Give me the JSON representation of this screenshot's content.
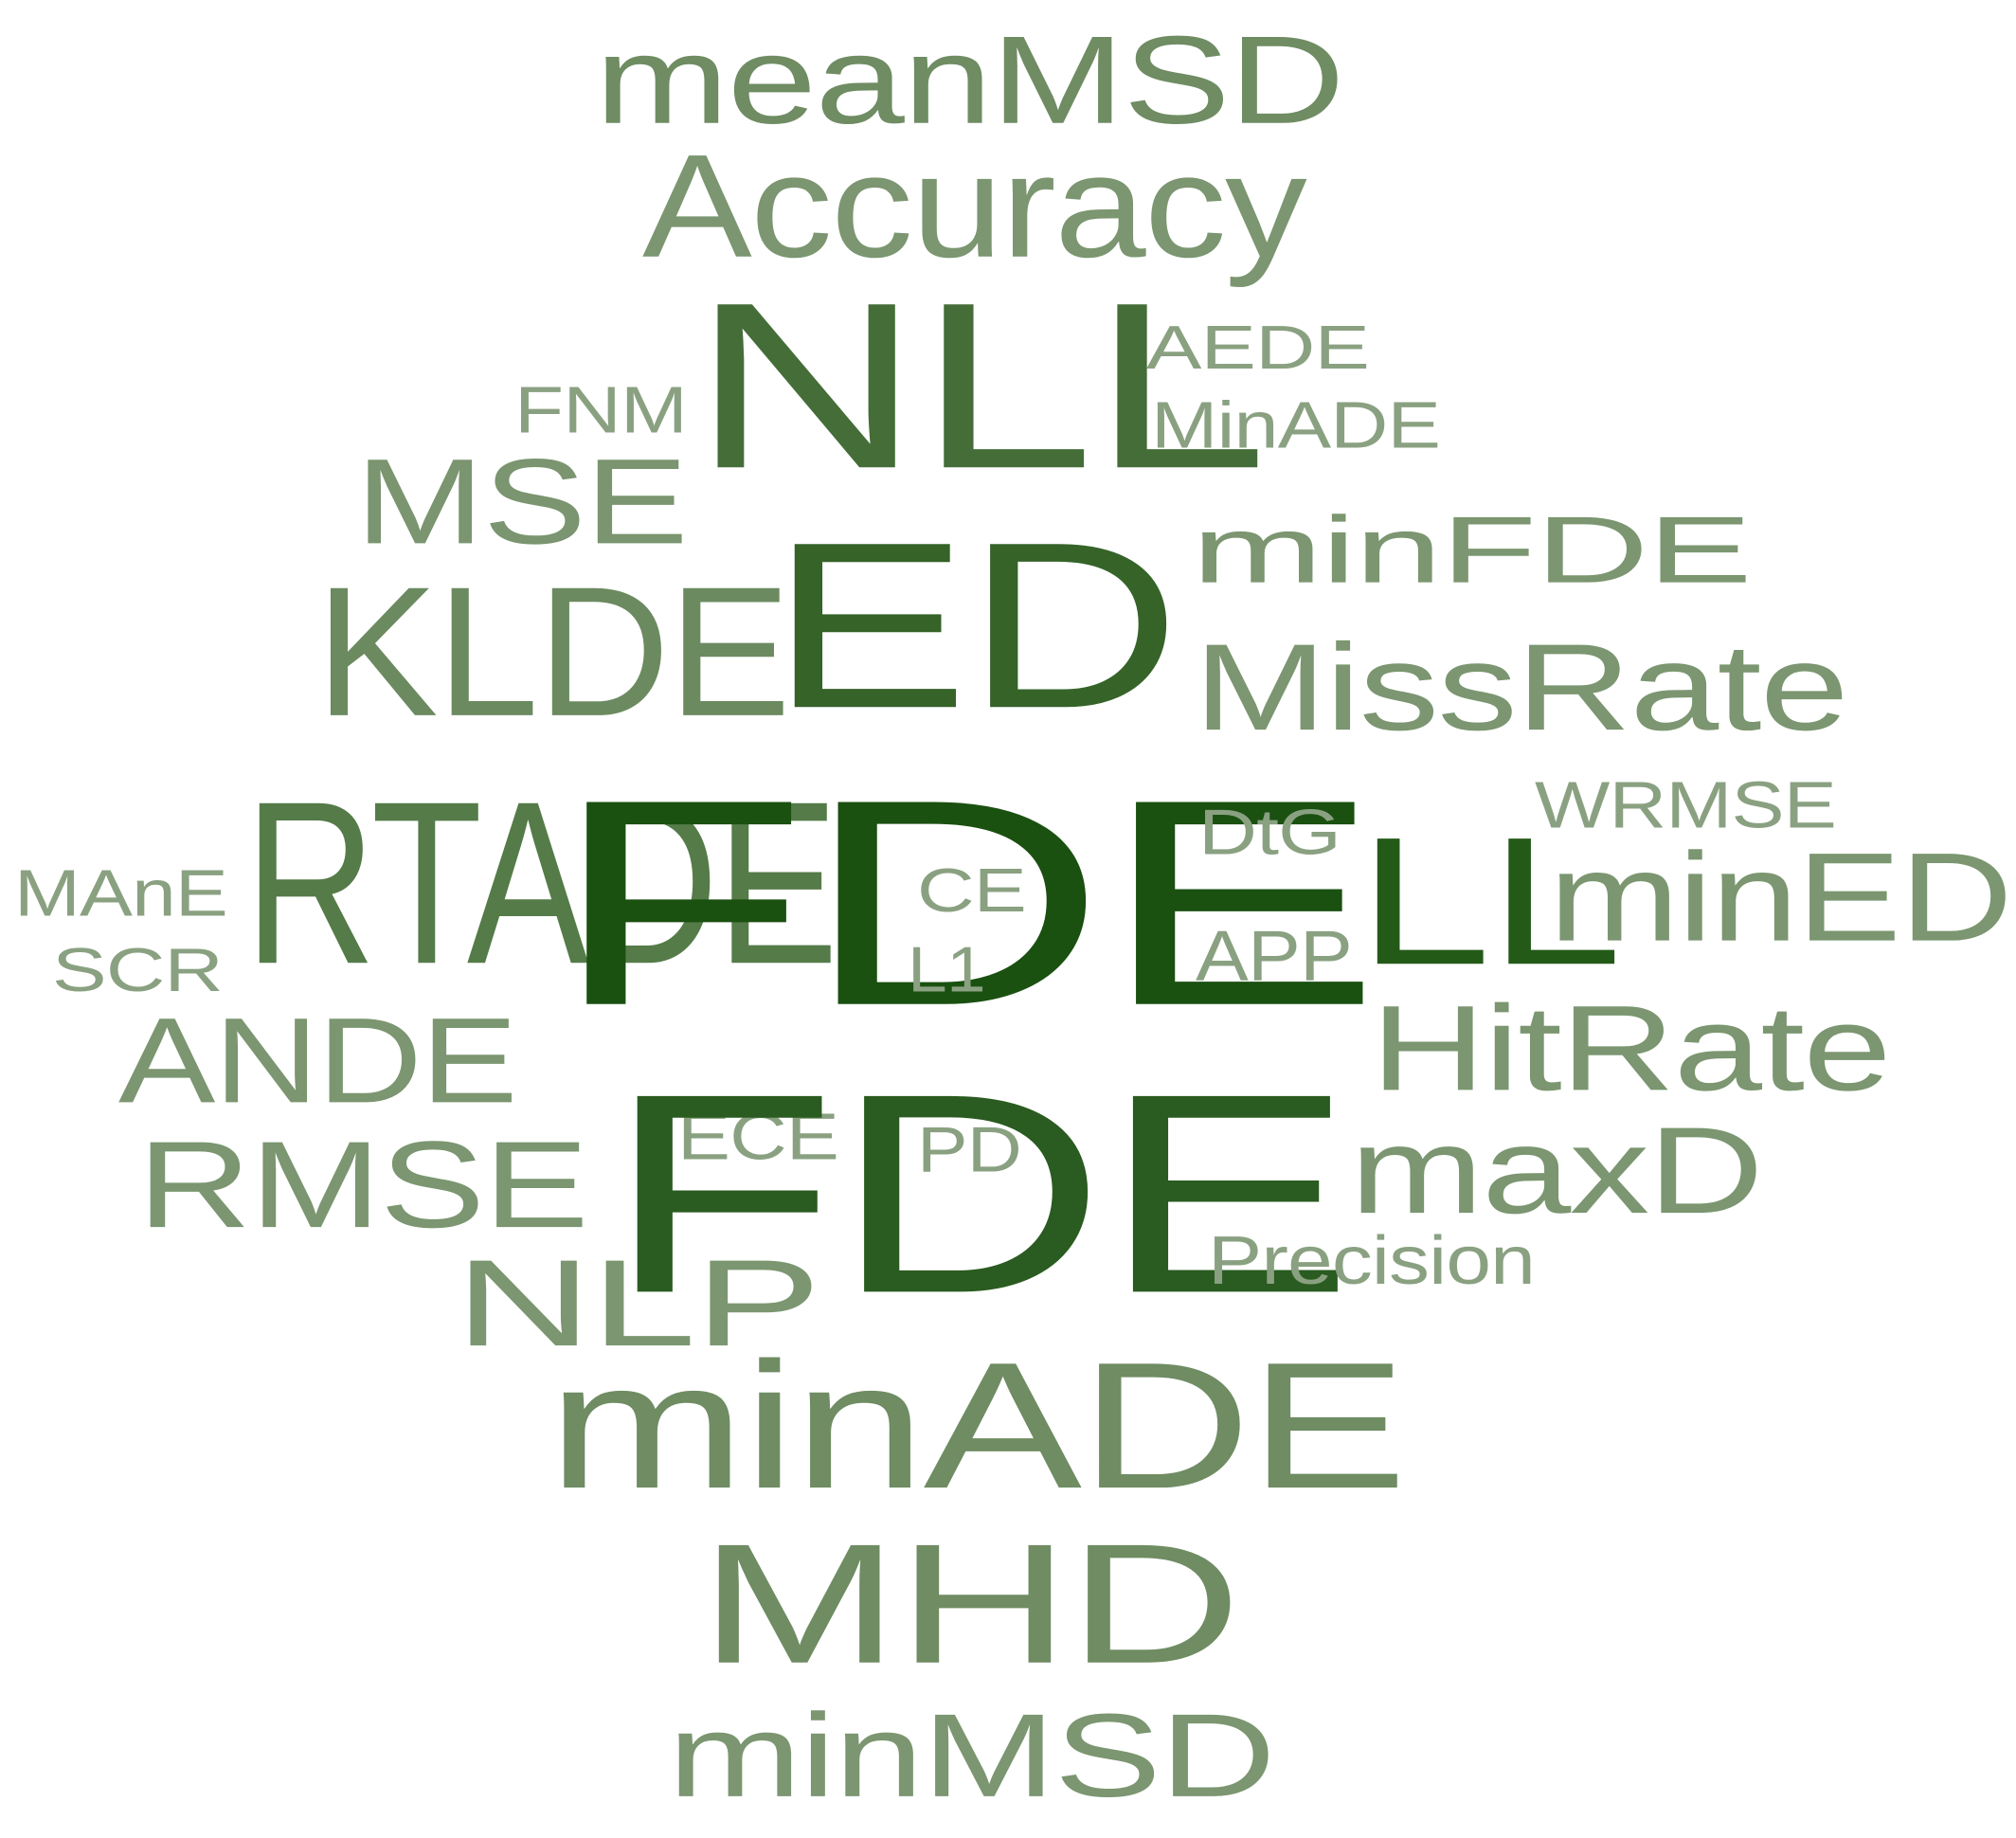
{
  "words": [
    {
      "text": "meanMSD",
      "color": "#6f8c63"
    },
    {
      "text": "Accuracy",
      "color": "#7b9670"
    },
    {
      "text": "NLL",
      "color": "#456d38"
    },
    {
      "text": "AEDE",
      "color": "#8aa181"
    },
    {
      "text": "MinADE",
      "color": "#8aa181"
    },
    {
      "text": "FNM",
      "color": "#8aa181"
    },
    {
      "text": "MSE",
      "color": "#7a956f"
    },
    {
      "text": "minFDE",
      "color": "#7b9670"
    },
    {
      "text": "KLDE",
      "color": "#6c8a60"
    },
    {
      "text": "ED",
      "color": "#356328"
    },
    {
      "text": "MissRate",
      "color": "#7b9670"
    },
    {
      "text": "RTADE",
      "color": "#557b48"
    },
    {
      "text": "FDE",
      "color": "#1a5010"
    },
    {
      "text": "DtG",
      "color": "#8aa181"
    },
    {
      "text": "CE",
      "color": "#8aa181"
    },
    {
      "text": "L1",
      "color": "#8aa181"
    },
    {
      "text": "APP",
      "color": "#8aa181"
    },
    {
      "text": "LL",
      "color": "#245a18"
    },
    {
      "text": "WRMSE",
      "color": "#8aa181"
    },
    {
      "text": "minED",
      "color": "#7b9670"
    },
    {
      "text": "MAnE",
      "color": "#8aa181"
    },
    {
      "text": "SCR",
      "color": "#8aa181"
    },
    {
      "text": "HitRate",
      "color": "#7b9670"
    },
    {
      "text": "ANDE",
      "color": "#7b9670"
    },
    {
      "text": "RMSE",
      "color": "#7b9670"
    },
    {
      "text": "ECE",
      "color": "#8aa181"
    },
    {
      "text": "PD",
      "color": "#8aa181"
    },
    {
      "text": "FDE",
      "color": "#2a5b20"
    },
    {
      "text": "maxD",
      "color": "#7b9670"
    },
    {
      "text": "Precision",
      "color": "#8aa181"
    },
    {
      "text": "NLP",
      "color": "#7b9670"
    },
    {
      "text": "minADE",
      "color": "#6f8c63"
    },
    {
      "text": "MHD",
      "color": "#6f8c63"
    },
    {
      "text": "minMSD",
      "color": "#7b9670"
    }
  ]
}
